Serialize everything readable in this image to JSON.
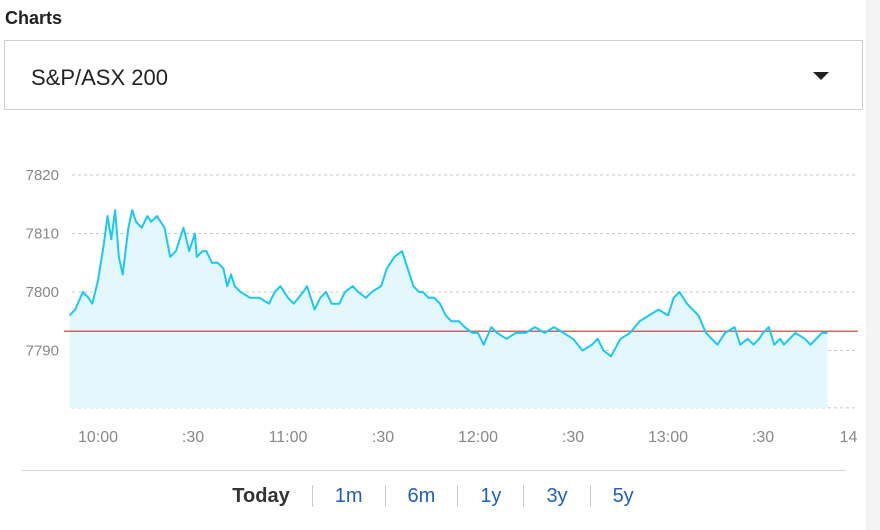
{
  "section_title": "Charts",
  "index_selector": {
    "value": "S&P/ASX 200"
  },
  "ranges": [
    {
      "label": "Today",
      "active": true
    },
    {
      "label": "1m",
      "active": false
    },
    {
      "label": "6m",
      "active": false
    },
    {
      "label": "1y",
      "active": false
    },
    {
      "label": "3y",
      "active": false
    },
    {
      "label": "5y",
      "active": false
    }
  ],
  "colors": {
    "line": "#19c9f2",
    "fill": "#e3f7fd",
    "reference": "#c0392b",
    "grid": "#c8c8c8",
    "tick_text": "#888888"
  },
  "chart_data": {
    "type": "area",
    "ylim": [
      7780,
      7822
    ],
    "xlim": [
      9.8,
      13.95
    ],
    "yticks": [
      7820,
      7810,
      7800,
      7790
    ],
    "xticks": [
      {
        "x": 10.0,
        "label": "10:00"
      },
      {
        "x": 10.5,
        "label": ":30"
      },
      {
        "x": 11.0,
        "label": "11:00"
      },
      {
        "x": 11.5,
        "label": ":30"
      },
      {
        "x": 12.0,
        "label": "12:00"
      },
      {
        "x": 12.5,
        "label": ":30"
      },
      {
        "x": 13.0,
        "label": "13:00"
      },
      {
        "x": 13.5,
        "label": ":30"
      },
      {
        "x": 13.95,
        "label": "14"
      }
    ],
    "reference_line": 7793.3,
    "grid": true,
    "x": [
      9.85,
      9.88,
      9.92,
      9.95,
      9.97,
      10.0,
      10.03,
      10.05,
      10.07,
      10.09,
      10.11,
      10.13,
      10.16,
      10.18,
      10.2,
      10.23,
      10.26,
      10.28,
      10.31,
      10.35,
      10.38,
      10.41,
      10.43,
      10.45,
      10.48,
      10.51,
      10.52,
      10.55,
      10.57,
      10.6,
      10.63,
      10.66,
      10.68,
      10.7,
      10.72,
      10.75,
      10.8,
      10.85,
      10.9,
      10.93,
      10.96,
      11.0,
      11.03,
      11.08,
      11.1,
      11.14,
      11.17,
      11.2,
      11.23,
      11.27,
      11.3,
      11.34,
      11.37,
      11.41,
      11.44,
      11.49,
      11.52,
      11.56,
      11.6,
      11.63,
      11.66,
      11.69,
      11.71,
      11.74,
      11.77,
      11.8,
      11.83,
      11.86,
      11.9,
      11.93,
      11.97,
      12.0,
      12.03,
      12.07,
      12.1,
      12.15,
      12.2,
      12.25,
      12.3,
      12.35,
      12.4,
      12.45,
      12.5,
      12.55,
      12.6,
      12.63,
      12.66,
      12.7,
      12.75,
      12.8,
      12.85,
      12.9,
      12.95,
      13.0,
      13.03,
      13.06,
      13.1,
      13.13,
      13.16,
      13.2,
      13.23,
      13.26,
      13.3,
      13.35,
      13.38,
      13.42,
      13.45,
      13.48,
      13.5,
      13.53,
      13.56,
      13.59,
      13.61,
      13.64,
      13.67,
      13.72,
      13.75,
      13.78,
      13.81,
      13.84
    ],
    "values": [
      7796,
      7797,
      7800,
      7799,
      7798,
      7802,
      7808,
      7813,
      7809,
      7814,
      7806,
      7803,
      7811,
      7814,
      7812,
      7811,
      7813,
      7812,
      7813,
      7811,
      7806,
      7807,
      7809,
      7811,
      7807,
      7810,
      7806,
      7807,
      7807,
      7805,
      7805,
      7804,
      7801,
      7803,
      7801,
      7800,
      7799,
      7799,
      7798,
      7800,
      7801,
      7799,
      7798,
      7800,
      7801,
      7797,
      7799,
      7800,
      7798,
      7798,
      7800,
      7801,
      7800,
      7799,
      7800,
      7801,
      7804,
      7806,
      7807,
      7804,
      7801,
      7800,
      7800,
      7799,
      7799,
      7798,
      7796,
      7795,
      7795,
      7794,
      7793,
      7793,
      7791,
      7794,
      7793,
      7792,
      7793,
      7793,
      7794,
      7793,
      7794,
      7793,
      7792,
      7790,
      7791,
      7792,
      7790,
      7789,
      7792,
      7793,
      7795,
      7796,
      7797,
      7796,
      7799,
      7800,
      7798,
      7797,
      7796,
      7793,
      7792,
      7791,
      7793,
      7794,
      7791,
      7792,
      7791,
      7792,
      7793,
      7794,
      7791,
      7792,
      7791,
      7792,
      7793,
      7792,
      7791,
      7792,
      7793,
      7793
    ]
  }
}
